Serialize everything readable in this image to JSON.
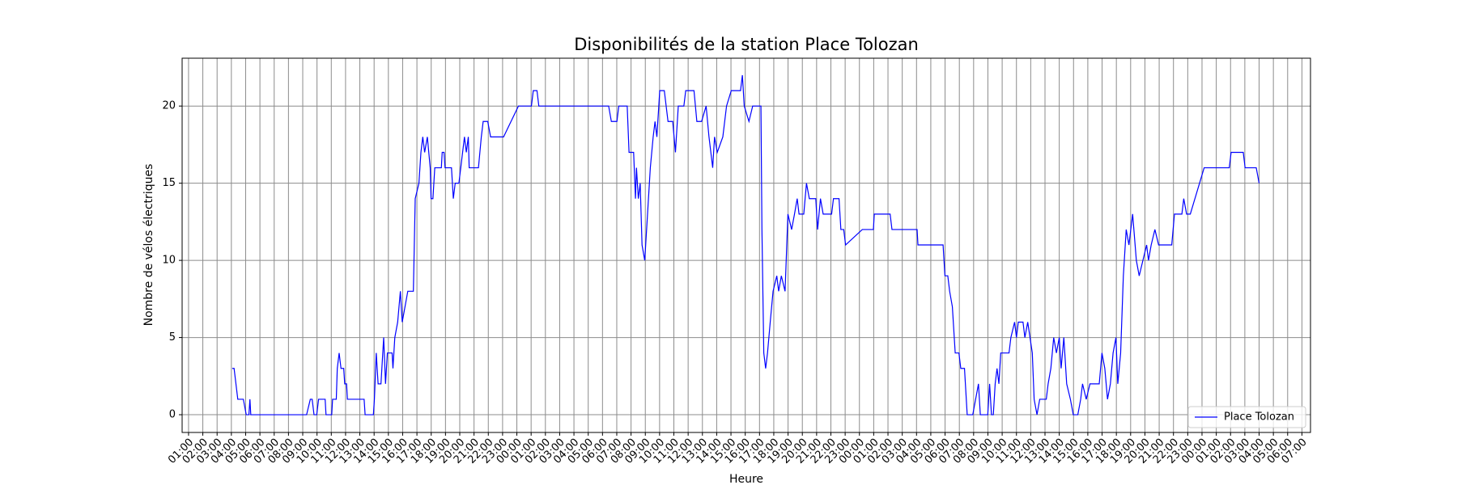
{
  "chart_data": {
    "type": "line",
    "title": "Disponibilités de la station Place Tolozan",
    "xlabel": "Heure",
    "ylabel": "Nombre de vélos électriques",
    "x": [
      4.06,
      4.19,
      4.32,
      4.45,
      4.84,
      5.04,
      5.23,
      5.3,
      5.36,
      9.27,
      9.53,
      9.66,
      9.79,
      9.98,
      10.11,
      10.57,
      10.63,
      11.03,
      11.09,
      11.35,
      11.42,
      11.55,
      11.68,
      11.87,
      11.94,
      12.07,
      12.13,
      13.3,
      13.37,
      13.95,
      14.02,
      14.15,
      14.28,
      14.48,
      14.67,
      14.8,
      14.93,
      15.26,
      15.32,
      15.45,
      15.65,
      15.84,
      15.97,
      16.36,
      16.75,
      16.88,
      17.14,
      17.28,
      17.41,
      17.54,
      17.73,
      17.93,
      17.99,
      18.12,
      18.25,
      18.71,
      18.77,
      18.9,
      18.97,
      19.42,
      19.55,
      19.68,
      19.94,
      20.07,
      20.2,
      20.33,
      20.46,
      20.6,
      20.66,
      21.31,
      21.51,
      21.64,
      21.96,
      22.16,
      23.07,
      24.11,
      25.02,
      25.15,
      25.41,
      25.54,
      30.43,
      30.62,
      31.01,
      31.14,
      31.73,
      31.86,
      32.18,
      32.31,
      32.38,
      32.51,
      32.64,
      32.77,
      32.96,
      33.09,
      33.22,
      33.35,
      33.55,
      33.68,
      33.81,
      34.01,
      34.33,
      34.46,
      34.59,
      34.92,
      35.11,
      35.31,
      35.7,
      35.83,
      36.41,
      36.61,
      36.94,
      37.26,
      37.46,
      37.59,
      37.72,
      37.85,
      38.04,
      38.43,
      38.69,
      39.02,
      39.67,
      39.8,
      39.93,
      40.26,
      40.52,
      41.1,
      41.17,
      41.3,
      41.43,
      41.56,
      41.75,
      41.95,
      42.21,
      42.34,
      42.53,
      42.79,
      42.99,
      43.25,
      43.45,
      43.64,
      43.77,
      44.1,
      44.29,
      44.49,
      44.94,
      45.07,
      45.27,
      45.46,
      46.05,
      46.18,
      46.57,
      46.7,
      46.9,
      47.03,
      48.2,
      48.98,
      49.04,
      50.15,
      50.28,
      52.04,
      52.1,
      53.86,
      53.99,
      54.19,
      54.32,
      54.51,
      54.71,
      54.97,
      55.1,
      55.36,
      55.55,
      55.94,
      56.14,
      56.34,
      56.47,
      56.99,
      57.12,
      57.25,
      57.38,
      57.51,
      57.64,
      57.77,
      57.9,
      58.48,
      58.61,
      58.87,
      59.0,
      59.13,
      59.46,
      59.59,
      59.79,
      60.11,
      60.24,
      60.44,
      60.63,
      61.09,
      61.22,
      61.41,
      61.61,
      61.8,
      62.0,
      62.13,
      62.32,
      62.52,
      62.78,
      62.98,
      63.3,
      63.5,
      63.63,
      63.89,
      64.15,
      64.8,
      64.99,
      65.19,
      65.38,
      65.58,
      65.77,
      65.97,
      66.1,
      66.3,
      66.49,
      66.69,
      66.88,
      67.14,
      67.4,
      67.6,
      67.86,
      68.12,
      68.25,
      68.44,
      68.7,
      68.96,
      69.88,
      70.07,
      70.59,
      70.72,
      70.92,
      71.18,
      72.15,
      73.91,
      74.04,
      74.89,
      75.02,
      75.8,
      76.0
    ],
    "series": [
      {
        "name": "Place Tolozan",
        "color": "#0000ff",
        "values": [
          3,
          3,
          2,
          1,
          1,
          0,
          0,
          1,
          0,
          0,
          1,
          1,
          0,
          0,
          1,
          1,
          0,
          0,
          1,
          1,
          3,
          4,
          3,
          3,
          2,
          2,
          1,
          1,
          0,
          0,
          1,
          4,
          2,
          2,
          5,
          2,
          4,
          4,
          3,
          5,
          6,
          8,
          6,
          8,
          8,
          14,
          15,
          17,
          18,
          17,
          18,
          16,
          14,
          14,
          16,
          16,
          17,
          17,
          16,
          16,
          14,
          15,
          15,
          16,
          17,
          18,
          17,
          18,
          16,
          16,
          18,
          19,
          19,
          18,
          18,
          20,
          20,
          21,
          21,
          20,
          20,
          19,
          19,
          20,
          20,
          17,
          17,
          14,
          16,
          14,
          15,
          11,
          10,
          12,
          14,
          16,
          18,
          19,
          18,
          21,
          21,
          20,
          19,
          19,
          17,
          20,
          20,
          21,
          21,
          19,
          19,
          20,
          18,
          17,
          16,
          18,
          17,
          18,
          20,
          21,
          21,
          22,
          20,
          19,
          20,
          20,
          12,
          4,
          3,
          4,
          6,
          8,
          9,
          8,
          9,
          8,
          13,
          12,
          13,
          14,
          13,
          13,
          15,
          14,
          14,
          12,
          14,
          13,
          13,
          14,
          14,
          12,
          12,
          11,
          12,
          12,
          13,
          13,
          12,
          12,
          11,
          11,
          9,
          9,
          8,
          7,
          4,
          4,
          3,
          3,
          0,
          0,
          1,
          2,
          0,
          0,
          2,
          0,
          0,
          2,
          3,
          2,
          4,
          4,
          5,
          6,
          5,
          6,
          6,
          5,
          6,
          4,
          1,
          0,
          1,
          1,
          2,
          3,
          5,
          4,
          5,
          3,
          5,
          2,
          1,
          0,
          0,
          1,
          2,
          1,
          2,
          2,
          4,
          3,
          1,
          2,
          4,
          5,
          2,
          4,
          9,
          12,
          11,
          13,
          10,
          9,
          10,
          11,
          10,
          11,
          12,
          11,
          11,
          13,
          13,
          14,
          13,
          13,
          16,
          16,
          17,
          17,
          16,
          16,
          15
        ]
      }
    ],
    "xlim": [
      0.55,
      79.6
    ],
    "ylim": [
      -1.15,
      23.1
    ],
    "yticks": [
      0,
      5,
      10,
      15,
      20
    ],
    "xticks": [
      {
        "value": 1,
        "label": "01:00"
      },
      {
        "value": 2,
        "label": "02:00"
      },
      {
        "value": 3,
        "label": "03:00"
      },
      {
        "value": 4,
        "label": "04:00"
      },
      {
        "value": 5,
        "label": "05:00"
      },
      {
        "value": 6,
        "label": "06:00"
      },
      {
        "value": 7,
        "label": "07:00"
      },
      {
        "value": 8,
        "label": "08:00"
      },
      {
        "value": 9,
        "label": "09:00"
      },
      {
        "value": 10,
        "label": "10:00"
      },
      {
        "value": 11,
        "label": "11:00"
      },
      {
        "value": 12,
        "label": "12:00"
      },
      {
        "value": 13,
        "label": "13:00"
      },
      {
        "value": 14,
        "label": "14:00"
      },
      {
        "value": 15,
        "label": "15:00"
      },
      {
        "value": 16,
        "label": "16:00"
      },
      {
        "value": 17,
        "label": "17:00"
      },
      {
        "value": 18,
        "label": "18:00"
      },
      {
        "value": 19,
        "label": "19:00"
      },
      {
        "value": 20,
        "label": "20:00"
      },
      {
        "value": 21,
        "label": "21:00"
      },
      {
        "value": 22,
        "label": "22:00"
      },
      {
        "value": 23,
        "label": "23:00"
      },
      {
        "value": 24,
        "label": "00:00"
      },
      {
        "value": 25,
        "label": "01:00"
      },
      {
        "value": 26,
        "label": "02:00"
      },
      {
        "value": 27,
        "label": "03:00"
      },
      {
        "value": 28,
        "label": "04:00"
      },
      {
        "value": 29,
        "label": "05:00"
      },
      {
        "value": 30,
        "label": "06:00"
      },
      {
        "value": 31,
        "label": "07:00"
      },
      {
        "value": 32,
        "label": "08:00"
      },
      {
        "value": 33,
        "label": "09:00"
      },
      {
        "value": 34,
        "label": "10:00"
      },
      {
        "value": 35,
        "label": "11:00"
      },
      {
        "value": 36,
        "label": "12:00"
      },
      {
        "value": 37,
        "label": "13:00"
      },
      {
        "value": 38,
        "label": "14:00"
      },
      {
        "value": 39,
        "label": "15:00"
      },
      {
        "value": 40,
        "label": "16:00"
      },
      {
        "value": 41,
        "label": "17:00"
      },
      {
        "value": 42,
        "label": "18:00"
      },
      {
        "value": 43,
        "label": "19:00"
      },
      {
        "value": 44,
        "label": "20:00"
      },
      {
        "value": 45,
        "label": "21:00"
      },
      {
        "value": 46,
        "label": "22:00"
      },
      {
        "value": 47,
        "label": "23:00"
      },
      {
        "value": 48,
        "label": "00:00"
      },
      {
        "value": 49,
        "label": "01:00"
      },
      {
        "value": 50,
        "label": "02:00"
      },
      {
        "value": 51,
        "label": "03:00"
      },
      {
        "value": 52,
        "label": "04:00"
      },
      {
        "value": 53,
        "label": "05:00"
      },
      {
        "value": 54,
        "label": "06:00"
      },
      {
        "value": 55,
        "label": "07:00"
      },
      {
        "value": 56,
        "label": "08:00"
      },
      {
        "value": 57,
        "label": "09:00"
      },
      {
        "value": 58,
        "label": "10:00"
      },
      {
        "value": 59,
        "label": "11:00"
      },
      {
        "value": 60,
        "label": "12:00"
      },
      {
        "value": 61,
        "label": "13:00"
      },
      {
        "value": 62,
        "label": "14:00"
      },
      {
        "value": 63,
        "label": "15:00"
      },
      {
        "value": 64,
        "label": "16:00"
      },
      {
        "value": 65,
        "label": "17:00"
      },
      {
        "value": 66,
        "label": "18:00"
      },
      {
        "value": 67,
        "label": "19:00"
      },
      {
        "value": 68,
        "label": "20:00"
      },
      {
        "value": 69,
        "label": "21:00"
      },
      {
        "value": 70,
        "label": "22:00"
      },
      {
        "value": 71,
        "label": "23:00"
      },
      {
        "value": 72,
        "label": "00:00"
      },
      {
        "value": 73,
        "label": "01:00"
      },
      {
        "value": 74,
        "label": "02:00"
      },
      {
        "value": 75,
        "label": "03:00"
      },
      {
        "value": 76,
        "label": "04:00"
      },
      {
        "value": 77,
        "label": "05:00"
      },
      {
        "value": 78,
        "label": "06:00"
      },
      {
        "value": 79,
        "label": "07:00"
      }
    ],
    "grid": true,
    "legend": "lower right"
  }
}
